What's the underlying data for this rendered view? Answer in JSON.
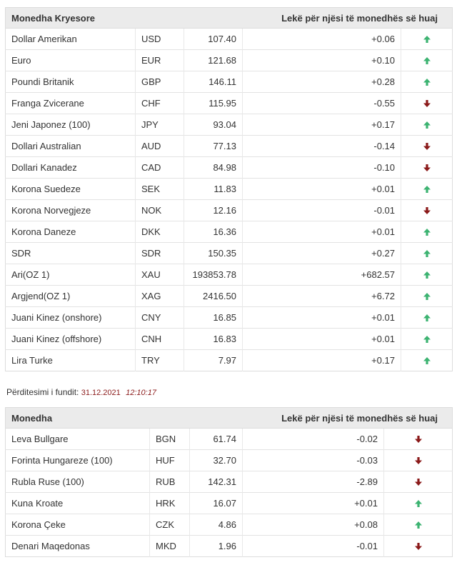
{
  "main_table": {
    "header_currency": "Monedha Kryesore",
    "header_rate": "Lekë për njësi të monedhës së huaj",
    "rows": [
      {
        "name": "Dollar Amerikan",
        "code": "USD",
        "rate": "107.40",
        "change": "+0.06",
        "dir": "up"
      },
      {
        "name": "Euro",
        "code": "EUR",
        "rate": "121.68",
        "change": "+0.10",
        "dir": "up"
      },
      {
        "name": "Poundi Britanik",
        "code": "GBP",
        "rate": "146.11",
        "change": "+0.28",
        "dir": "up"
      },
      {
        "name": "Franga Zvicerane",
        "code": "CHF",
        "rate": "115.95",
        "change": "-0.55",
        "dir": "down"
      },
      {
        "name": "Jeni Japonez (100)",
        "code": "JPY",
        "rate": "93.04",
        "change": "+0.17",
        "dir": "up"
      },
      {
        "name": "Dollari Australian",
        "code": "AUD",
        "rate": "77.13",
        "change": "-0.14",
        "dir": "down"
      },
      {
        "name": "Dollari Kanadez",
        "code": "CAD",
        "rate": "84.98",
        "change": "-0.10",
        "dir": "down"
      },
      {
        "name": "Korona Suedeze",
        "code": "SEK",
        "rate": "11.83",
        "change": "+0.01",
        "dir": "up"
      },
      {
        "name": "Korona Norvegjeze",
        "code": "NOK",
        "rate": "12.16",
        "change": "-0.01",
        "dir": "down"
      },
      {
        "name": "Korona Daneze",
        "code": "DKK",
        "rate": "16.36",
        "change": "+0.01",
        "dir": "up"
      },
      {
        "name": "SDR",
        "code": "SDR",
        "rate": "150.35",
        "change": "+0.27",
        "dir": "up"
      },
      {
        "name": "Ari(OZ 1)",
        "code": "XAU",
        "rate": "193853.78",
        "change": "+682.57",
        "dir": "up"
      },
      {
        "name": "Argjend(OZ 1)",
        "code": "XAG",
        "rate": "2416.50",
        "change": "+6.72",
        "dir": "up"
      },
      {
        "name": "Juani Kinez (onshore)",
        "code": "CNY",
        "rate": "16.85",
        "change": "+0.01",
        "dir": "up"
      },
      {
        "name": "Juani Kinez (offshore)",
        "code": "CNH",
        "rate": "16.83",
        "change": "+0.01",
        "dir": "up"
      },
      {
        "name": "Lira Turke",
        "code": "TRY",
        "rate": "7.97",
        "change": "+0.17",
        "dir": "up"
      }
    ]
  },
  "last_update": {
    "label": "Përditesimi i fundit:",
    "date": "31.12.2021",
    "time": "12:10:17"
  },
  "other_table": {
    "header_currency": "Monedha",
    "header_rate": "Lekë për njësi të monedhës së huaj",
    "rows": [
      {
        "name": "Leva Bullgare",
        "code": "BGN",
        "rate": "61.74",
        "change": "-0.02",
        "dir": "down"
      },
      {
        "name": "Forinta Hungareze (100)",
        "code": "HUF",
        "rate": "32.70",
        "change": "-0.03",
        "dir": "down"
      },
      {
        "name": "Rubla Ruse (100)",
        "code": "RUB",
        "rate": "142.31",
        "change": "-2.89",
        "dir": "down"
      },
      {
        "name": "Kuna Kroate",
        "code": "HRK",
        "rate": "16.07",
        "change": "+0.01",
        "dir": "up"
      },
      {
        "name": "Korona Çeke",
        "code": "CZK",
        "rate": "4.86",
        "change": "+0.08",
        "dir": "up"
      },
      {
        "name": "Denari Maqedonas",
        "code": "MKD",
        "rate": "1.96",
        "change": "-0.01",
        "dir": "down"
      }
    ]
  },
  "colors": {
    "up_arrow": "#3cb371",
    "down_arrow": "#8b1a1a"
  },
  "icons": {
    "up": "arrow-up-icon",
    "down": "arrow-down-icon"
  }
}
